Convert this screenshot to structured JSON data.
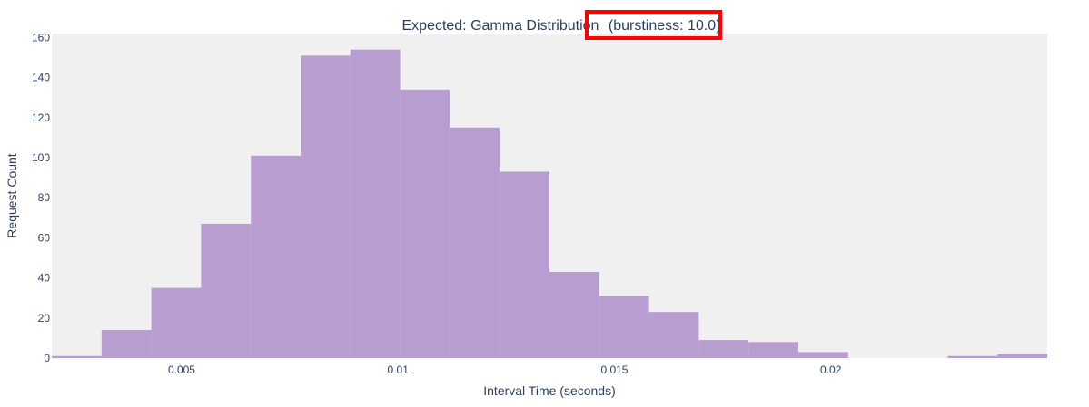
{
  "chart_data": {
    "type": "bar",
    "title": "Expected: Gamma Distribution (burstiness: 10.0)",
    "title_parts": [
      "Expected: Gamma Distribution",
      "(burstiness: 10.0)"
    ],
    "xlabel": "Interval Time (seconds)",
    "ylabel": "Request Count",
    "xlim": [
      0.002,
      0.025
    ],
    "ylim": [
      0,
      162
    ],
    "x_ticks": [
      0.005,
      0.01,
      0.015,
      0.02
    ],
    "x_tick_labels": [
      "0.005",
      "0.01",
      "0.015",
      "0.02"
    ],
    "y_ticks": [
      0,
      20,
      40,
      60,
      80,
      100,
      120,
      140,
      160
    ],
    "y_tick_labels": [
      "0",
      "20",
      "40",
      "60",
      "80",
      "100",
      "120",
      "140",
      "160"
    ],
    "bin_width": 0.00115,
    "bin_starts": [
      0.002,
      0.00315,
      0.0043,
      0.00545,
      0.0066,
      0.00775,
      0.0089,
      0.01005,
      0.0112,
      0.01235,
      0.0135,
      0.01465,
      0.0158,
      0.01695,
      0.0181,
      0.01925,
      0.0204,
      0.02155,
      0.0227,
      0.02385
    ],
    "values": [
      1,
      14,
      35,
      67,
      101,
      151,
      154,
      134,
      115,
      93,
      43,
      31,
      23,
      9,
      8,
      3,
      0,
      0,
      1,
      2
    ],
    "grid": false,
    "legend": "none",
    "colors": {
      "bar": "#b89ed0",
      "plot_bg": "#f0f0f0",
      "highlight_box": "#ff0000"
    }
  }
}
